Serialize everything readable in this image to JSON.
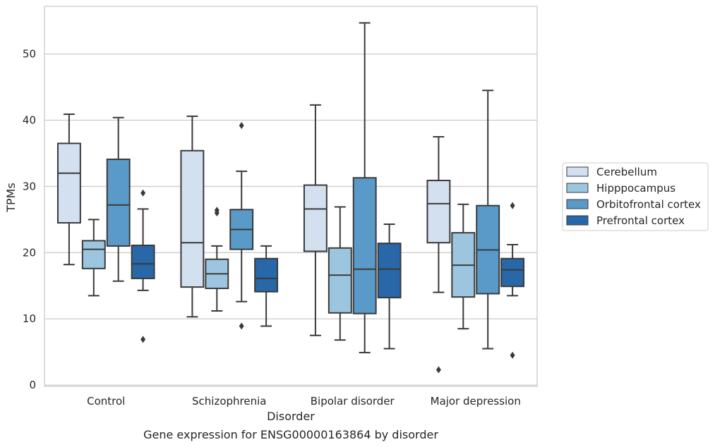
{
  "chart_data": {
    "type": "box",
    "title": "Gene expression for ENSG00000163864 by disorder",
    "xlabel": "Disorder",
    "ylabel": "TPMs",
    "ylim": [
      -0.2,
      57.2
    ],
    "yticks": [
      0,
      10,
      20,
      30,
      40,
      50
    ],
    "categories": [
      "Control",
      "Schizophrenia",
      "Bipolar disorder",
      "Major depression"
    ],
    "grid": "horizontal",
    "legend_position": "right, outside plot",
    "series": [
      {
        "name": "Cerebellum",
        "color": "#d2e0f0",
        "boxes": [
          {
            "whislo": 18.2,
            "q1": 24.5,
            "med": 32.0,
            "q3": 36.5,
            "whishi": 40.9,
            "fliers": []
          },
          {
            "whislo": 10.3,
            "q1": 14.8,
            "med": 21.5,
            "q3": 35.4,
            "whishi": 40.6,
            "fliers": []
          },
          {
            "whislo": 7.5,
            "q1": 20.2,
            "med": 26.6,
            "q3": 30.2,
            "whishi": 42.3,
            "fliers": []
          },
          {
            "whislo": 14.0,
            "q1": 21.5,
            "med": 27.4,
            "q3": 30.9,
            "whishi": 37.5,
            "fliers": [
              2.3
            ]
          }
        ]
      },
      {
        "name": "Hipppocampus",
        "color": "#9cc6e0",
        "boxes": [
          {
            "whislo": 13.5,
            "q1": 17.6,
            "med": 20.5,
            "q3": 21.8,
            "whishi": 25.0,
            "fliers": []
          },
          {
            "whislo": 11.2,
            "q1": 14.6,
            "med": 16.8,
            "q3": 19.0,
            "whishi": 21.0,
            "fliers": [
              26.0,
              26.4
            ]
          },
          {
            "whislo": 6.8,
            "q1": 10.9,
            "med": 16.6,
            "q3": 20.7,
            "whishi": 26.9,
            "fliers": []
          },
          {
            "whislo": 8.5,
            "q1": 13.3,
            "med": 18.1,
            "q3": 23.0,
            "whishi": 27.3,
            "fliers": []
          }
        ]
      },
      {
        "name": "Orbitofrontal cortex",
        "color": "#5a9ac8",
        "boxes": [
          {
            "whislo": 15.7,
            "q1": 21.0,
            "med": 27.2,
            "q3": 34.1,
            "whishi": 40.4,
            "fliers": []
          },
          {
            "whislo": 12.6,
            "q1": 20.5,
            "med": 23.5,
            "q3": 26.5,
            "whishi": 32.3,
            "fliers": [
              8.9,
              39.2
            ]
          },
          {
            "whislo": 4.9,
            "q1": 10.8,
            "med": 17.5,
            "q3": 31.3,
            "whishi": 54.7,
            "fliers": []
          },
          {
            "whislo": 5.5,
            "q1": 13.8,
            "med": 20.4,
            "q3": 27.1,
            "whishi": 44.5,
            "fliers": []
          }
        ]
      },
      {
        "name": "Prefrontal cortex",
        "color": "#2867a8",
        "boxes": [
          {
            "whislo": 14.3,
            "q1": 16.1,
            "med": 18.3,
            "q3": 21.1,
            "whishi": 26.6,
            "fliers": [
              6.9,
              29.0
            ]
          },
          {
            "whislo": 8.9,
            "q1": 14.1,
            "med": 16.1,
            "q3": 19.1,
            "whishi": 21.0,
            "fliers": []
          },
          {
            "whislo": 5.5,
            "q1": 13.2,
            "med": 17.5,
            "q3": 21.4,
            "whishi": 24.3,
            "fliers": []
          },
          {
            "whislo": 13.5,
            "q1": 14.9,
            "med": 17.4,
            "q3": 19.1,
            "whishi": 21.2,
            "fliers": [
              4.5,
              27.1
            ]
          }
        ]
      }
    ]
  }
}
